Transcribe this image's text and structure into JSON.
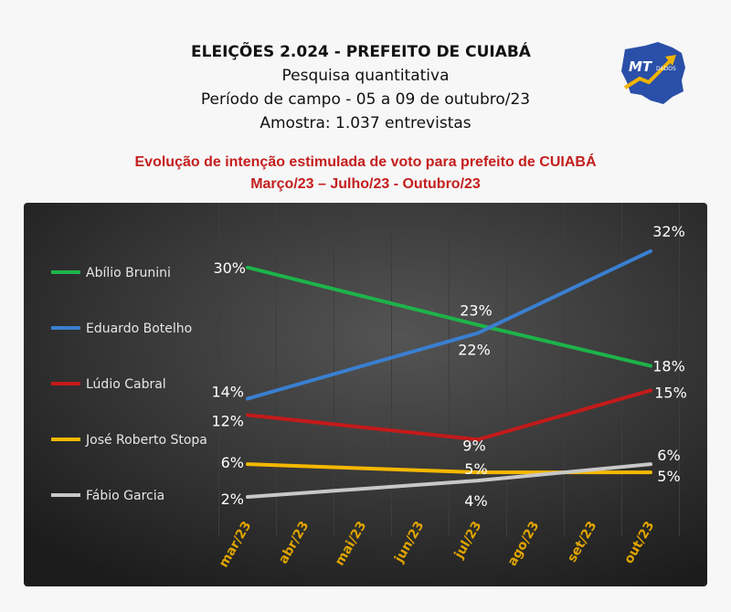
{
  "header": {
    "title": "ELEIÇÕES 2.024  -  PREFEITO DE CUIABÁ",
    "line1": "Pesquisa quantitativa",
    "line2": "Período de campo - 05 a 09 de outubro/23",
    "line3": "Amostra: 1.037 entrevistas"
  },
  "subtitle": {
    "line1": "Evolução de intenção estimulada de voto para prefeito de CUIABÁ",
    "line2": "Março/23 – Julho/23 -  Outubro/23"
  },
  "logo": {
    "text": "MT",
    "subtext": "DADOS",
    "colors": {
      "map": "#2a4fa8",
      "accent": "#f0b400"
    }
  },
  "chart_data": {
    "type": "line",
    "categories": [
      "mar/23",
      "abr/23",
      "mai/23",
      "jun/23",
      "jul/23",
      "ago/23",
      "set/23",
      "out/23"
    ],
    "ylim": [
      0,
      35
    ],
    "grid": true,
    "legend_position": "left",
    "series": [
      {
        "name": "Abílio Brunini",
        "color": "#1db34a",
        "points": [
          {
            "x": "mar/23",
            "y": 30,
            "label": "30%"
          },
          {
            "x": "jul/23",
            "y": 23,
            "label": "23%"
          },
          {
            "x": "out/23",
            "y": 18,
            "label": "18%"
          }
        ]
      },
      {
        "name": "Eduardo Botelho",
        "color": "#3a7fd1",
        "points": [
          {
            "x": "mar/23",
            "y": 14,
            "label": "14%"
          },
          {
            "x": "jul/23",
            "y": 22,
            "label": "22%"
          },
          {
            "x": "out/23",
            "y": 32,
            "label": "32%"
          }
        ]
      },
      {
        "name": "Lúdio Cabral",
        "color": "#c41a1a",
        "points": [
          {
            "x": "mar/23",
            "y": 12,
            "label": "12%"
          },
          {
            "x": "jul/23",
            "y": 9,
            "label": "9%"
          },
          {
            "x": "out/23",
            "y": 15,
            "label": "15%"
          }
        ]
      },
      {
        "name": "José Roberto Stopa",
        "color": "#f5b800",
        "points": [
          {
            "x": "mar/23",
            "y": 6,
            "label": "6%"
          },
          {
            "x": "jul/23",
            "y": 5,
            "label": "5%"
          },
          {
            "x": "out/23",
            "y": 5,
            "label": "5%"
          }
        ]
      },
      {
        "name": "Fábio Garcia",
        "color": "#c8c8c8",
        "points": [
          {
            "x": "mar/23",
            "y": 2,
            "label": "2%"
          },
          {
            "x": "jul/23",
            "y": 4,
            "label": "4%"
          },
          {
            "x": "out/23",
            "y": 6,
            "label": "6%"
          }
        ]
      }
    ],
    "tick_color": "#e0a400",
    "data_label_color": "#ffffff",
    "legend_text_color": "#e6e6e6"
  }
}
